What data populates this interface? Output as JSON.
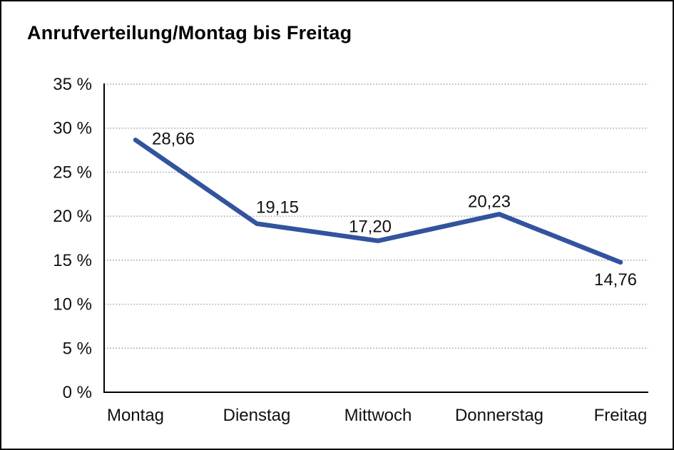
{
  "window": {
    "background": "#ffffff",
    "border_color": "#000000"
  },
  "chart_data": {
    "type": "line",
    "title": "Anrufverteilung/Montag bis Freitag",
    "categories": [
      "Montag",
      "Dienstag",
      "Mittwoch",
      "Donnerstag",
      "Freitag"
    ],
    "values": [
      28.66,
      19.15,
      17.2,
      20.23,
      14.76
    ],
    "point_labels": [
      "28,66",
      "19,15",
      "17,20",
      "20,23",
      "14,76"
    ],
    "xlabel": "",
    "ylabel": "",
    "ylim": [
      0,
      35
    ],
    "y_ticks": [
      {
        "value": 0,
        "label": "0 %"
      },
      {
        "value": 5,
        "label": "5 %"
      },
      {
        "value": 10,
        "label": "10 %"
      },
      {
        "value": 15,
        "label": "15 %"
      },
      {
        "value": 20,
        "label": "20 %"
      },
      {
        "value": 25,
        "label": "25 %"
      },
      {
        "value": 30,
        "label": "30 %"
      },
      {
        "value": 35,
        "label": "35 %"
      }
    ],
    "grid": "horizontal dotted",
    "legend_position": "none",
    "colors": {
      "line": "#33539e",
      "axis": "#000000",
      "grid": "#8c8c8c",
      "text": "#111111",
      "title": "#000000"
    }
  }
}
